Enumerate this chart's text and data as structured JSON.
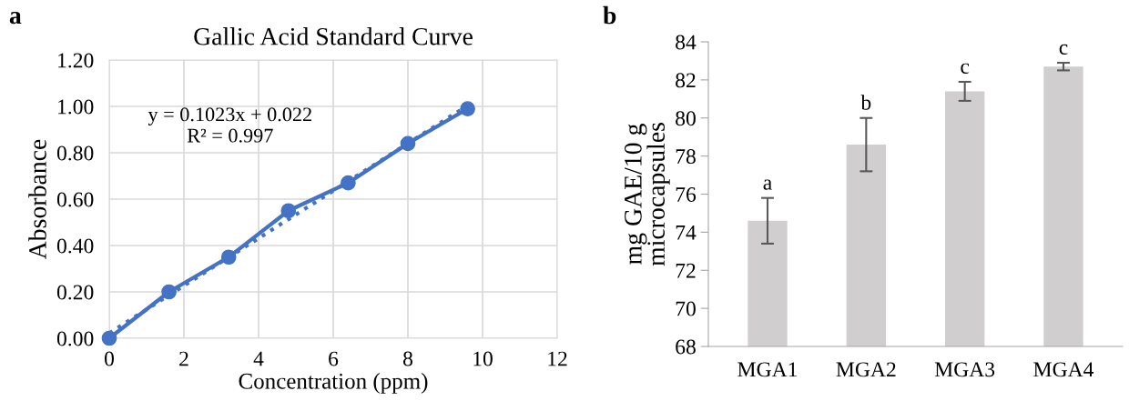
{
  "chart_data": [
    {
      "type": "line",
      "title": "Gallic Acid Standard Curve",
      "xlabel": "Concentration (ppm)",
      "ylabel": "Absorbance",
      "series": [
        {
          "type": "line",
          "color": "#4472c4",
          "marker": "circle",
          "line_style": "solid",
          "x": [
            0,
            1.6,
            3.2,
            4.8,
            6.4,
            8,
            9.6
          ],
          "values": [
            0.0,
            0.2,
            0.35,
            0.55,
            0.67,
            0.84,
            0.99
          ]
        },
        {
          "type": "line",
          "color": "#4472c4",
          "marker": "none",
          "line_style": "dotted",
          "x": [
            0,
            9.6
          ],
          "values": [
            0.022,
            1.004
          ]
        }
      ],
      "xlim": [
        0,
        12
      ],
      "xticks": [
        0,
        2,
        4,
        6,
        8,
        10,
        12
      ],
      "ylim": [
        0,
        1.2
      ],
      "yticks": [
        {
          "value": 0,
          "label": "0.00"
        },
        {
          "value": 0.2,
          "label": "0.20"
        },
        {
          "value": 0.4,
          "label": "0.40"
        },
        {
          "value": 0.6,
          "label": "0.60"
        },
        {
          "value": 0.8,
          "label": "0.80"
        },
        {
          "value": 1.0,
          "label": "1.00"
        },
        {
          "value": 1.2,
          "label": "1.20"
        }
      ],
      "grid": true,
      "annotations": [
        "a",
        "y = 0.1023x + 0.022\nR² = 0.997"
      ]
    },
    {
      "type": "bar",
      "ylabel": "mg GAE/10 g\nmicrocapsules",
      "categories": [
        "MGA1",
        "MGA2",
        "MGA3",
        "MGA4"
      ],
      "values": [
        74.6,
        78.6,
        81.4,
        82.7
      ],
      "errors": [
        1.2,
        1.4,
        0.5,
        0.2
      ],
      "color": "#d0cece",
      "ylim": [
        68,
        84
      ],
      "yticks": [
        68,
        70,
        72,
        74,
        76,
        78,
        80,
        82,
        84
      ],
      "grid": false,
      "annotations": [
        "b",
        {
          "text": "a",
          "x": "MGA1",
          "y": 75.8
        },
        {
          "text": "b",
          "x": "MGA2",
          "y": 80.0
        },
        {
          "text": "c",
          "x": "MGA3",
          "y": 81.9
        },
        {
          "text": "c",
          "x": "MGA4",
          "y": 82.9
        }
      ]
    }
  ]
}
